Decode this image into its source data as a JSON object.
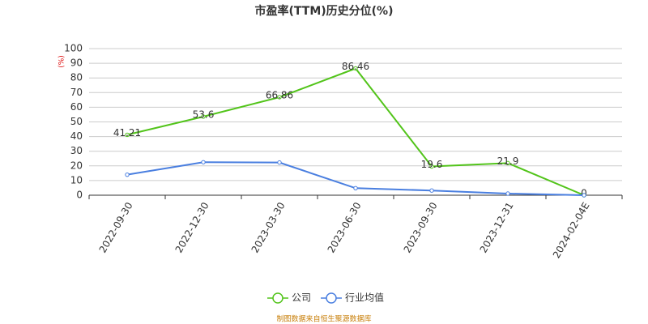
{
  "chart_data": {
    "type": "line",
    "title": "市盈率(TTM)历史分位(%)",
    "y_label": "(%)",
    "categories": [
      "2022-09-30",
      "2022-12-30",
      "2023-03-30",
      "2023-06-30",
      "2023-09-30",
      "2023-12-31",
      "2024-02-04E"
    ],
    "series": [
      {
        "name": "公司",
        "color": "#52c41a",
        "values": [
          41.21,
          53.6,
          66.86,
          86.46,
          19.6,
          21.9,
          0
        ],
        "show_labels": true
      },
      {
        "name": "行业均值",
        "color": "#4a7fe0",
        "values": [
          14,
          22.5,
          22.3,
          4.8,
          3.2,
          1.1,
          0
        ]
      }
    ],
    "ylim": [
      0,
      100
    ],
    "yticks": [
      0,
      10,
      20,
      30,
      40,
      50,
      60,
      70,
      80,
      90,
      100
    ],
    "grid": true,
    "source": "制图数据来自恒生聚源数据库"
  }
}
